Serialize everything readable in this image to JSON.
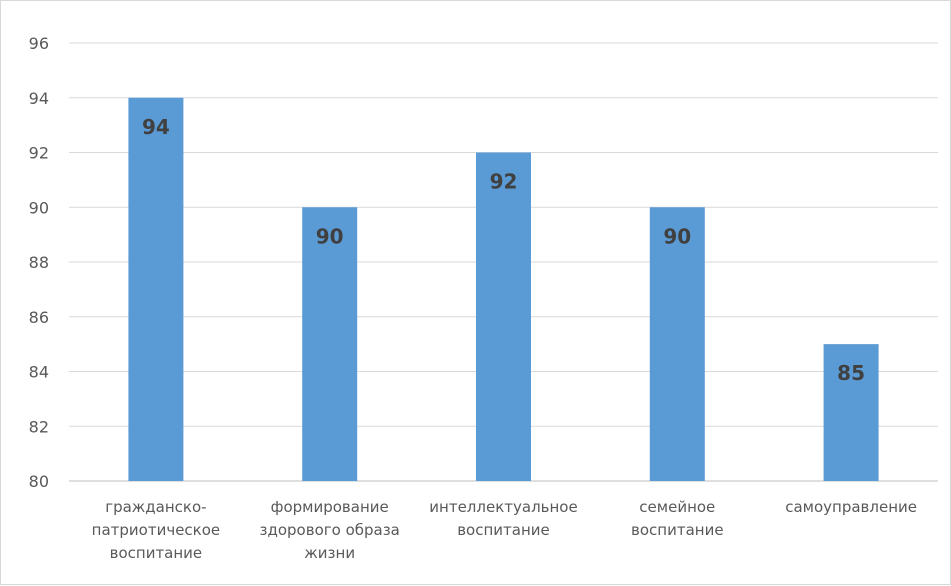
{
  "chart_data": {
    "type": "bar",
    "categories": [
      [
        "гражданско-",
        "патриотическое",
        "воспитание"
      ],
      [
        "формирование",
        "здорового образа",
        "жизни"
      ],
      [
        "интеллектуальное",
        "воспитание"
      ],
      [
        "семейное",
        "воспитание"
      ],
      [
        "самоуправление"
      ]
    ],
    "values": [
      94,
      90,
      92,
      90,
      85
    ],
    "data_labels": [
      "94",
      "90",
      "92",
      "90",
      "85"
    ],
    "ylim": [
      80,
      96
    ],
    "yticks": [
      80,
      82,
      84,
      86,
      88,
      90,
      92,
      94,
      96
    ],
    "grid": true,
    "legend": "none",
    "colors": {
      "bar": "#5b9bd5",
      "grid": "#d9d9d9",
      "axis": "#bfbfbf",
      "text": "#595959",
      "data_label": "#404040"
    }
  }
}
